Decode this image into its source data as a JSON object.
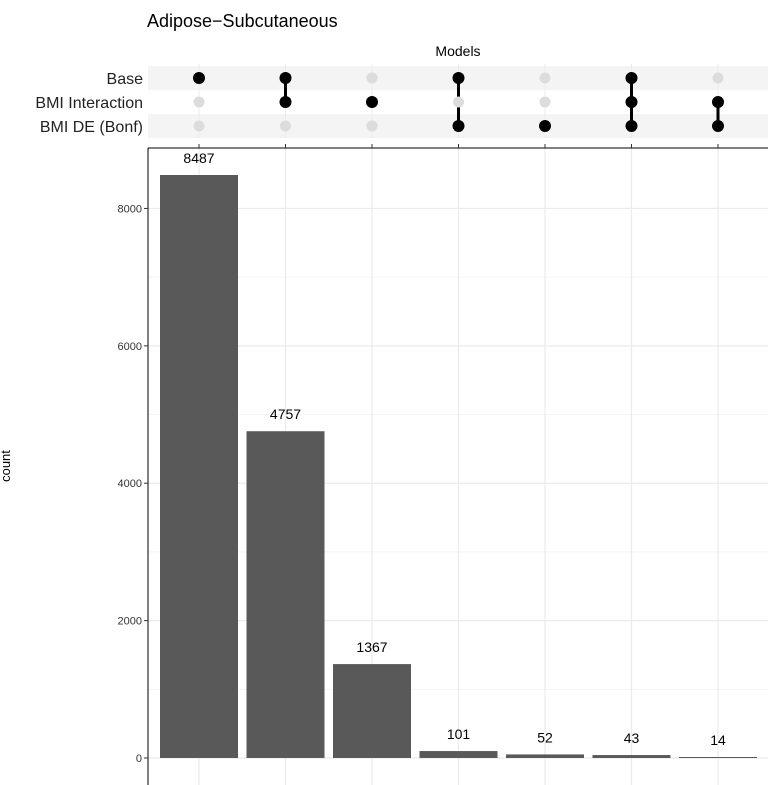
{
  "chart_data": {
    "type": "bar",
    "title": "Adipose−Subcutaneous",
    "matrix_title": "Models",
    "ylabel": "count",
    "sets": [
      "Base",
      "BMI Interaction",
      "BMI DE (Bonf)"
    ],
    "intersections": [
      {
        "members": [
          "Base"
        ],
        "value": 8487
      },
      {
        "members": [
          "Base",
          "BMI Interaction"
        ],
        "value": 4757
      },
      {
        "members": [
          "BMI Interaction"
        ],
        "value": 1367
      },
      {
        "members": [
          "Base",
          "BMI DE (Bonf)"
        ],
        "value": 101
      },
      {
        "members": [
          "BMI DE (Bonf)"
        ],
        "value": 52
      },
      {
        "members": [
          "Base",
          "BMI Interaction",
          "BMI DE (Bonf)"
        ],
        "value": 43
      },
      {
        "members": [
          "BMI Interaction",
          "BMI DE (Bonf)"
        ],
        "value": 14
      }
    ],
    "yticks": [
      0,
      2000,
      4000,
      6000,
      8000
    ],
    "ylim": [
      0,
      8900
    ],
    "grid": true,
    "bar_color": "#595959",
    "active_dot_color": "#000000",
    "inactive_dot_color": "#dcdcdc",
    "stripe_color": "#f4f4f4"
  }
}
